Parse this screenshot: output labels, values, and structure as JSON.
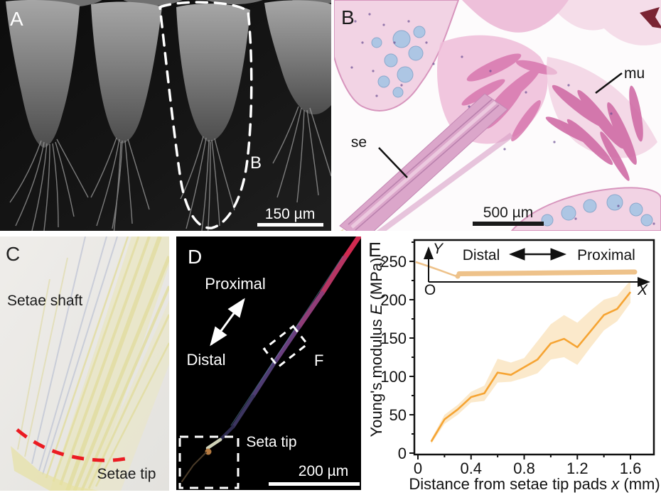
{
  "panels": {
    "a": {
      "label": "A",
      "region_label": "B",
      "scale_bar": "150 µm"
    },
    "b": {
      "label": "B",
      "muscle_abbrev": "mu",
      "setae_abbrev": "se",
      "scale_bar": "500 µm"
    },
    "c": {
      "label": "C",
      "shaft": "Setae shaft",
      "tip": "Setae tip"
    },
    "d": {
      "label": "D",
      "proximal": "Proximal",
      "distal": "Distal",
      "roi": "F",
      "tip": "Seta tip",
      "scale_bar": "200 µm"
    },
    "e": {
      "label": "E",
      "inset": {
        "y": "Y",
        "x": "X",
        "origin": "O",
        "distal": "Distal",
        "proximal": "Proximal"
      }
    }
  },
  "chart_data": {
    "type": "line",
    "title": "",
    "xlabel_parts": [
      "Distance from setae tip pads ",
      "x",
      " (mm)"
    ],
    "ylabel_parts": [
      "Young's modulus ",
      "E",
      " (MPa)"
    ],
    "x": [
      0.1,
      0.2,
      0.3,
      0.4,
      0.5,
      0.6,
      0.7,
      0.8,
      0.9,
      1.0,
      1.1,
      1.2,
      1.3,
      1.4,
      1.5,
      1.6
    ],
    "series": [
      {
        "name": "Young's modulus E",
        "values": [
          15,
          44,
          57,
          73,
          78,
          105,
          102,
          112,
          122,
          143,
          149,
          138,
          159,
          180,
          188,
          210
        ],
        "band_lower": [
          12,
          38,
          50,
          66,
          68,
          92,
          93,
          98,
          104,
          122,
          125,
          115,
          138,
          160,
          172,
          196
        ],
        "band_upper": [
          18,
          50,
          63,
          80,
          88,
          123,
          118,
          124,
          146,
          168,
          180,
          170,
          186,
          200,
          205,
          225
        ]
      }
    ],
    "xlim": [
      0,
      1.78
    ],
    "ylim": [
      0,
      278
    ],
    "xticks": [
      0,
      0.4,
      0.8,
      1.2,
      1.6
    ],
    "yticks": [
      0,
      50,
      100,
      150,
      200,
      250
    ],
    "x_minor_step": 0.2,
    "y_minor_step": 25,
    "grid": false,
    "legend_position": "none",
    "line_color": "#F6A433",
    "band_color": "#FAE3BE"
  },
  "colors": {
    "red_dash": "#EB1B22",
    "chart_line": "#F6A433",
    "chart_band": "#FAE3BE"
  }
}
